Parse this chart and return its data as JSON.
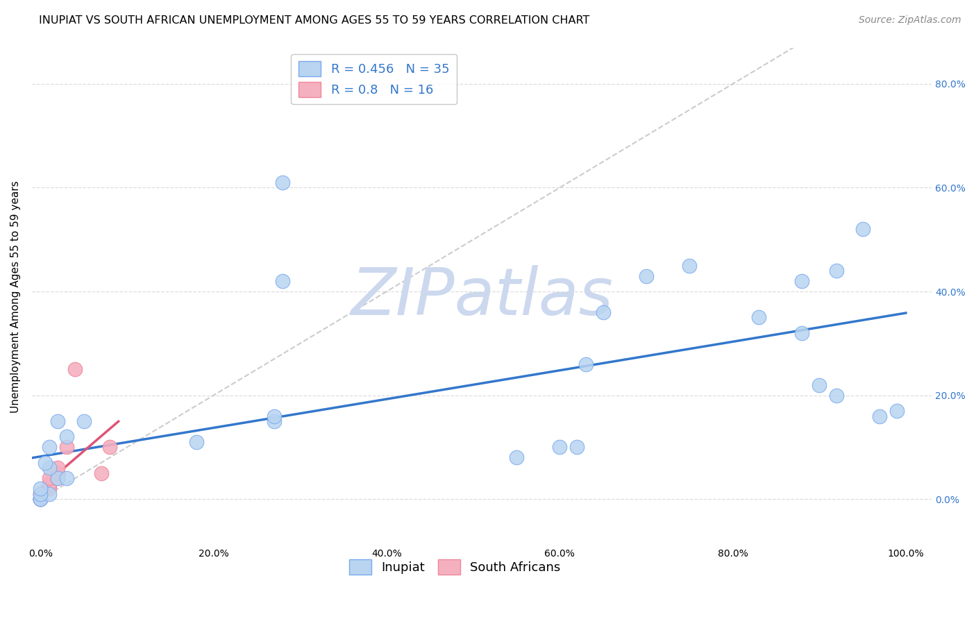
{
  "title": "INUPIAT VS SOUTH AFRICAN UNEMPLOYMENT AMONG AGES 55 TO 59 YEARS CORRELATION CHART",
  "source": "Source: ZipAtlas.com",
  "ylabel": "Unemployment Among Ages 55 to 59 years",
  "watermark": "ZIPatlas",
  "inupiat_x": [
    0.02,
    0.03,
    0.01,
    0.005,
    0.01,
    0.03,
    0.05,
    0.02,
    0.0,
    0.0,
    0.0,
    0.01,
    0.0,
    0.0,
    0.18,
    0.27,
    0.27,
    0.28,
    0.28,
    0.55,
    0.6,
    0.62,
    0.63,
    0.65,
    0.7,
    0.75,
    0.83,
    0.88,
    0.88,
    0.9,
    0.92,
    0.92,
    0.95,
    0.97,
    0.99
  ],
  "inupiat_y": [
    0.04,
    0.04,
    0.06,
    0.07,
    0.1,
    0.12,
    0.15,
    0.15,
    0.0,
    0.0,
    0.0,
    0.01,
    0.01,
    0.02,
    0.11,
    0.15,
    0.16,
    0.42,
    0.61,
    0.08,
    0.1,
    0.1,
    0.26,
    0.36,
    0.43,
    0.45,
    0.35,
    0.32,
    0.42,
    0.22,
    0.44,
    0.2,
    0.52,
    0.16,
    0.17
  ],
  "sa_x": [
    0.0,
    0.0,
    0.0,
    0.0,
    0.0,
    0.01,
    0.01,
    0.01,
    0.02,
    0.02,
    0.02,
    0.02,
    0.03,
    0.04,
    0.07,
    0.08
  ],
  "sa_y": [
    0.0,
    0.0,
    0.0,
    0.01,
    0.01,
    0.02,
    0.03,
    0.04,
    0.04,
    0.05,
    0.05,
    0.06,
    0.1,
    0.25,
    0.05,
    0.1
  ],
  "inupiat_R": 0.456,
  "inupiat_N": 35,
  "sa_R": 0.8,
  "sa_N": 16,
  "inupiat_color": "#b8d4f0",
  "sa_color": "#f5b0c0",
  "inupiat_edge_color": "#7aaaee",
  "sa_edge_color": "#ee8899",
  "inupiat_line_color": "#3377cc",
  "sa_line_color": "#dd5577",
  "diagonal_color": "#cccccc",
  "background_color": "#ffffff",
  "grid_color": "#dddddd",
  "title_fontsize": 11.5,
  "axis_label_fontsize": 11,
  "tick_fontsize": 10,
  "legend_fontsize": 13,
  "source_fontsize": 10,
  "watermark_color": "#ccd8ee",
  "xlim": [
    -0.01,
    1.03
  ],
  "ylim": [
    -0.09,
    0.87
  ],
  "x_ticks": [
    0.0,
    0.2,
    0.4,
    0.6,
    0.8,
    1.0
  ],
  "y_ticks": [
    0.0,
    0.2,
    0.4,
    0.6,
    0.8
  ]
}
